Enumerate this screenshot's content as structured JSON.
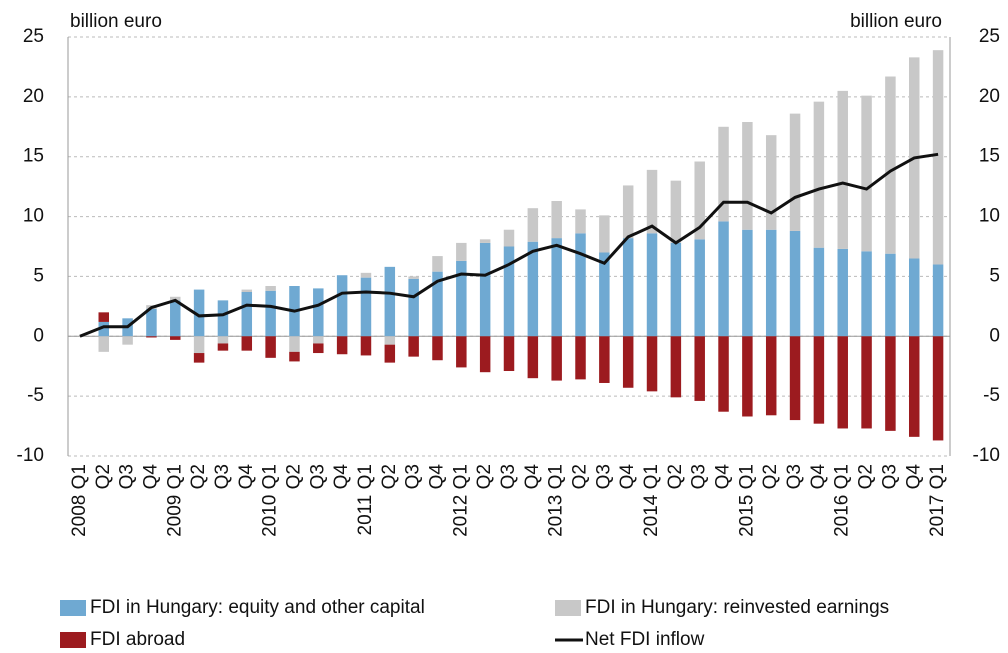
{
  "chart_data": {
    "type": "bar",
    "stacked": true,
    "ylabel": "billion euro",
    "y2label": "billion euro",
    "categories": [
      "2008 Q1",
      "Q2",
      "Q3",
      "Q4",
      "2009 Q1",
      "Q2",
      "Q3",
      "Q4",
      "2010 Q1",
      "Q2",
      "Q3",
      "Q4",
      "2011 Q1",
      "Q2",
      "Q3",
      "Q4",
      "2012 Q1",
      "Q2",
      "Q3",
      "Q4",
      "2013 Q1",
      "Q2",
      "Q3",
      "Q4",
      "2014 Q1",
      "Q2",
      "Q3",
      "Q4",
      "2015 Q1",
      "Q2",
      "Q3",
      "Q4",
      "2016 Q1",
      "Q2",
      "Q3",
      "Q4",
      "2017 Q1"
    ],
    "series": [
      {
        "name": "FDI in Hungary: equity and other capital",
        "color": "#6fa9d2",
        "type": "bar",
        "values": [
          0,
          1.2,
          1.5,
          2.3,
          3.0,
          3.9,
          3.0,
          3.7,
          3.8,
          4.2,
          4.0,
          5.1,
          4.9,
          5.8,
          4.8,
          5.4,
          6.3,
          7.8,
          7.5,
          7.9,
          8.2,
          8.6,
          7.0,
          8.2,
          8.6,
          7.8,
          8.1,
          9.6,
          8.9,
          8.9,
          8.8,
          7.4,
          7.3,
          7.1,
          6.9,
          6.5,
          6.0
        ]
      },
      {
        "name": "FDI in Hungary: reinvested earnings",
        "color": "#c8c8c8",
        "type": "bar",
        "values": [
          0,
          -1.3,
          -0.7,
          0.3,
          0.3,
          -1.4,
          -0.6,
          0.2,
          0.4,
          -1.3,
          -0.6,
          0,
          0.4,
          -0.7,
          0.2,
          1.3,
          1.5,
          0.3,
          1.4,
          2.8,
          3.1,
          2.0,
          3.1,
          4.4,
          5.3,
          5.2,
          6.5,
          7.9,
          9.0,
          7.9,
          9.8,
          12.2,
          13.2,
          13.0,
          14.8,
          16.8,
          17.9
        ]
      },
      {
        "name": "FDI abroad",
        "color": "#9c1b1f",
        "type": "bar",
        "values": [
          0,
          0.8,
          0,
          -0.1,
          -0.3,
          -0.8,
          -0.6,
          -1.2,
          -1.8,
          -0.8,
          -0.8,
          -1.5,
          -1.6,
          -1.5,
          -1.7,
          -2.0,
          -2.6,
          -3.0,
          -2.9,
          -3.5,
          -3.7,
          -3.6,
          -3.9,
          -4.3,
          -4.6,
          -5.1,
          -5.4,
          -6.3,
          -6.7,
          -6.6,
          -7.0,
          -7.3,
          -7.7,
          -7.7,
          -7.9,
          -8.4,
          -8.7
        ]
      },
      {
        "name": "Net FDI inflow",
        "color": "#111111",
        "type": "line",
        "values": [
          0,
          0.8,
          0.8,
          2.4,
          3.0,
          1.7,
          1.8,
          2.6,
          2.5,
          2.1,
          2.6,
          3.6,
          3.7,
          3.6,
          3.3,
          4.6,
          5.2,
          5.1,
          6.0,
          7.1,
          7.6,
          6.9,
          6.1,
          8.3,
          9.2,
          7.8,
          9.1,
          11.2,
          11.2,
          10.3,
          11.6,
          12.3,
          12.8,
          12.3,
          13.8,
          14.9,
          15.2
        ]
      }
    ],
    "ylim": [
      -10,
      25
    ],
    "yticks": [
      -10,
      -5,
      0,
      5,
      10,
      15,
      20,
      25
    ],
    "y2lim": [
      -10,
      25
    ],
    "y2ticks": [
      -10,
      -5,
      0,
      5,
      10,
      15,
      20,
      25
    ],
    "grid": true
  }
}
